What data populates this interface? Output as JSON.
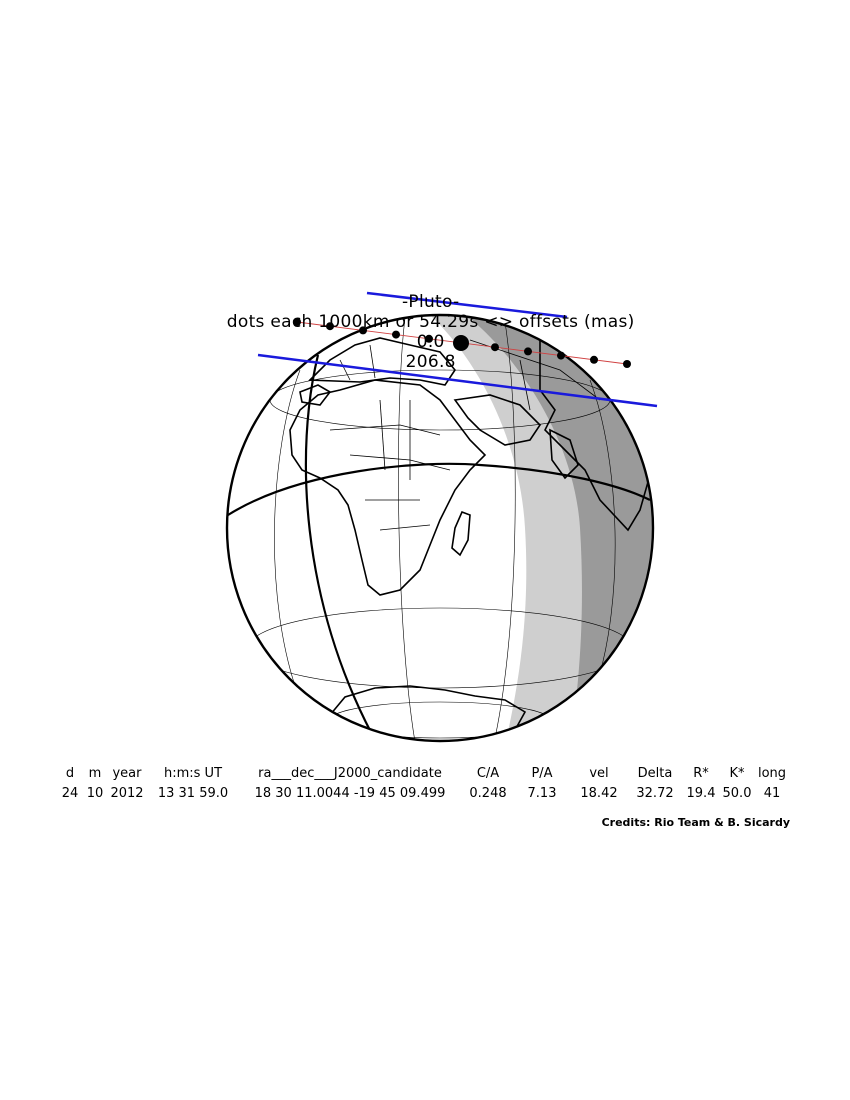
{
  "title": {
    "object": "-Pluto-",
    "subtitle": "dots each 1000km or 54.29s <> offsets (mas)",
    "offset_x": "0.0",
    "offset_y": "206.8"
  },
  "table": {
    "headers": [
      "d",
      "m",
      "year",
      "h:m:s UT",
      "ra___dec___J2000_candidate",
      "C/A",
      "P/A",
      "vel",
      "Delta",
      "R*",
      "K*",
      "long"
    ],
    "values": [
      "24",
      "10",
      "2012",
      "13 31 59.0",
      "18 30 11.0044 -19 45 09.499",
      "0.248",
      "7.13",
      "18.42",
      "32.72",
      "19.4",
      "50.0",
      "41"
    ]
  },
  "credits": "Credits: Rio Team & B. Sicardy",
  "colors": {
    "shadow_line": "#1a1adc",
    "path_line": "#d04040",
    "night_light": "#cfcfcf",
    "night_dark": "#9a9a9a",
    "ink": "#000000"
  }
}
